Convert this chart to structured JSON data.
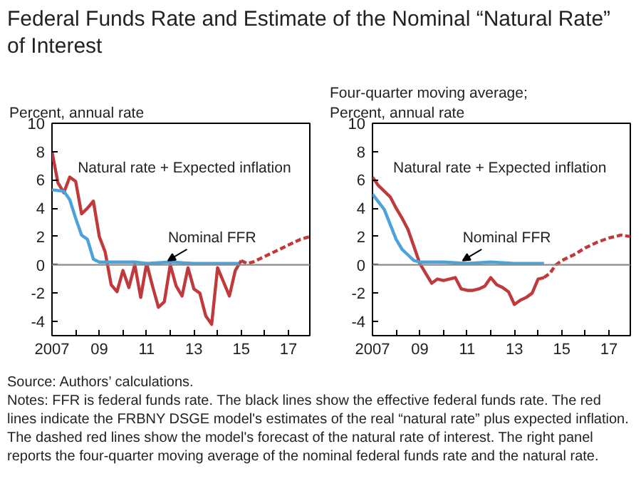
{
  "chart_data": [
    {
      "type": "line",
      "title": "Federal Funds Rate and Estimate of the Nominal “Natural Rate” of Interest",
      "ylabel": "Percent, annual rate",
      "annotations": [
        "Notes: FFR is federal funds rate. The black lines show the effective federal funds rate. The red lines indicate the FRBNY DSGE model's estimates of the real “natural rate” plus expected inflation. The dashed red lines show the model's forecast of the natural rate of interest. The right panel reports the four-quarter moving average of the nominal federal funds rate and the natural rate.",
        "Source: Authors’ calculations."
      ],
      "xlim": [
        2007,
        2017.9
      ],
      "ylim": [
        -5,
        10
      ],
      "xticks": [
        {
          "value": 2007,
          "label": "2007"
        },
        {
          "value": 2008,
          "label": null
        },
        {
          "value": 2009,
          "label": "09"
        },
        {
          "value": 2010,
          "label": null
        },
        {
          "value": 2011,
          "label": "11"
        },
        {
          "value": 2012,
          "label": null
        },
        {
          "value": 2013,
          "label": "13"
        },
        {
          "value": 2014,
          "label": null
        },
        {
          "value": 2015,
          "label": "15"
        },
        {
          "value": 2016,
          "label": null
        },
        {
          "value": 2017,
          "label": "17"
        }
      ],
      "yticks": [
        -4,
        -2,
        0,
        2,
        4,
        6,
        8,
        10
      ],
      "grid": false,
      "legend": false,
      "marker": "none",
      "ref_lines": [
        {
          "axis": "y",
          "value": 0,
          "color": "#8c8c8c"
        }
      ],
      "series": [
        {
          "name": "Natural rate + Expected inflation",
          "color": "#c0393b",
          "line_style": "solid",
          "x": [
            2007,
            2007.25,
            2007.5,
            2007.75,
            2008,
            2008.25,
            2008.5,
            2008.75,
            2009,
            2009.25,
            2009.5,
            2009.75,
            2010,
            2010.25,
            2010.5,
            2010.75,
            2011,
            2011.25,
            2011.5,
            2011.75,
            2012,
            2012.25,
            2012.5,
            2012.75,
            2013,
            2013.25,
            2013.5,
            2013.75,
            2014,
            2014.25,
            2014.5,
            2014.75,
            2015
          ],
          "values": [
            8.0,
            5.8,
            5.1,
            6.2,
            5.9,
            3.6,
            4.0,
            4.5,
            2.0,
            0.9,
            -1.4,
            -1.9,
            -0.4,
            -1.6,
            0.0,
            -2.3,
            0.1,
            -1.5,
            -3.0,
            -2.6,
            0.0,
            -1.5,
            -2.2,
            -0.2,
            -1.7,
            -2.0,
            -3.6,
            -4.2,
            -0.2,
            -1.2,
            -2.2,
            -0.4,
            0.3
          ]
        },
        {
          "color": "#c0393b",
          "line_style": "dashed",
          "x": [
            2015,
            2015.25,
            2015.5,
            2016,
            2016.5,
            2017,
            2017.5,
            2017.9
          ],
          "values": [
            0.3,
            0.1,
            0.2,
            0.6,
            1.0,
            1.4,
            1.8,
            2.0
          ]
        },
        {
          "name": "Nominal FFR",
          "color": "#4ba3dc",
          "line_style": "solid",
          "x": [
            2007,
            2007.5,
            2007.75,
            2008,
            2008.25,
            2008.5,
            2008.75,
            2009,
            2009.5,
            2010.5,
            2011,
            2012,
            2013,
            2014,
            2014.9
          ],
          "values": [
            5.3,
            5.2,
            4.6,
            3.3,
            2.1,
            1.8,
            0.4,
            0.2,
            0.2,
            0.2,
            0.1,
            0.2,
            0.1,
            0.1,
            0.1
          ]
        }
      ]
    },
    {
      "type": "line",
      "ylabel": "Four-quarter moving average;\nPercent, annual rate",
      "xlim": [
        2007,
        2017.9
      ],
      "ylim": [
        -5,
        10
      ],
      "xticks": [
        {
          "value": 2007,
          "label": "2007"
        },
        {
          "value": 2008,
          "label": null
        },
        {
          "value": 2009,
          "label": "09"
        },
        {
          "value": 2010,
          "label": null
        },
        {
          "value": 2011,
          "label": "11"
        },
        {
          "value": 2012,
          "label": null
        },
        {
          "value": 2013,
          "label": "13"
        },
        {
          "value": 2014,
          "label": null
        },
        {
          "value": 2015,
          "label": "15"
        },
        {
          "value": 2016,
          "label": null
        },
        {
          "value": 2017,
          "label": "17"
        }
      ],
      "yticks": [
        -4,
        -2,
        0,
        2,
        4,
        6,
        8,
        10
      ],
      "grid": false,
      "legend": false,
      "marker": "none",
      "ref_lines": [
        {
          "axis": "y",
          "value": 0,
          "color": "#8c8c8c"
        }
      ],
      "series": [
        {
          "name": "Natural rate + Expected inflation",
          "color": "#c0393b",
          "line_style": "solid",
          "x": [
            2007,
            2007.25,
            2007.5,
            2007.75,
            2008,
            2008.25,
            2008.5,
            2008.75,
            2009,
            2009.25,
            2009.5,
            2009.75,
            2010,
            2010.25,
            2010.5,
            2010.75,
            2011,
            2011.25,
            2011.5,
            2011.75,
            2012,
            2012.25,
            2012.5,
            2012.75,
            2013,
            2013.25,
            2013.5,
            2013.75,
            2014,
            2014.25
          ],
          "values": [
            6.2,
            5.6,
            5.2,
            4.8,
            4.0,
            3.3,
            2.5,
            1.3,
            0.1,
            -0.6,
            -1.3,
            -1.0,
            -1.1,
            -1.0,
            -0.9,
            -1.7,
            -1.8,
            -1.8,
            -1.7,
            -1.5,
            -0.9,
            -1.4,
            -1.6,
            -1.9,
            -2.8,
            -2.5,
            -2.3,
            -2.0,
            -1.0,
            -0.9
          ]
        },
        {
          "color": "#c0393b",
          "line_style": "dashed",
          "x": [
            2014.25,
            2014.5,
            2014.75,
            2015,
            2015.5,
            2016,
            2016.5,
            2017,
            2017.5,
            2017.9
          ],
          "values": [
            -0.9,
            -0.6,
            0.0,
            0.3,
            0.7,
            1.2,
            1.6,
            1.9,
            2.1,
            2.0
          ]
        },
        {
          "name": "Nominal FFR",
          "color": "#4ba3dc",
          "line_style": "solid",
          "x": [
            2007,
            2007.5,
            2008,
            2008.25,
            2008.5,
            2008.75,
            2009,
            2010,
            2011,
            2012,
            2013,
            2014,
            2014.25
          ],
          "values": [
            5.0,
            3.9,
            1.8,
            1.1,
            0.7,
            0.3,
            0.2,
            0.2,
            0.1,
            0.2,
            0.1,
            0.1,
            0.1
          ]
        }
      ]
    }
  ]
}
